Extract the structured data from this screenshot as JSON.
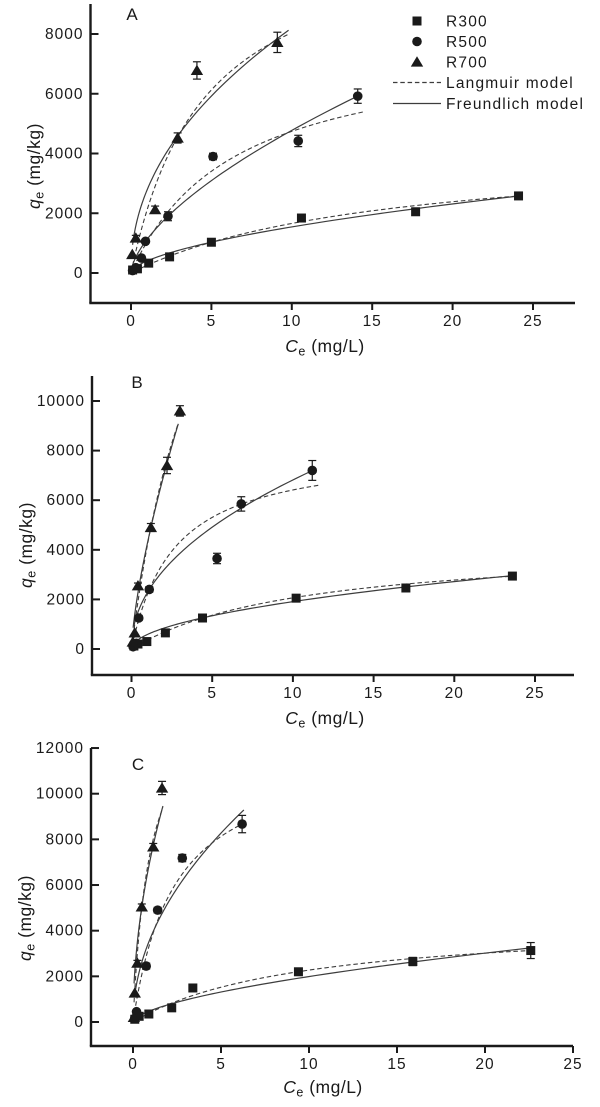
{
  "figure": {
    "background": "#ffffff",
    "ink": "#1a1a1a",
    "curve_color": "#3d3d3d",
    "legend": {
      "items": [
        {
          "label": "R300",
          "marker": "square"
        },
        {
          "label": "R500",
          "marker": "circle"
        },
        {
          "label": "R700",
          "marker": "triangle"
        },
        {
          "label": "Langmuir model",
          "line": "dashed"
        },
        {
          "label": "Freundlich model",
          "line": "solid"
        }
      ]
    }
  },
  "chart_data": [
    {
      "type": "scatter",
      "panel": "A",
      "xlabel": "Ce (mg/L)",
      "ylabel": "qe (mg/kg)",
      "xlim": [
        -2.5,
        27.6
      ],
      "ylim": [
        -1000,
        9000
      ],
      "xticks": [
        0,
        5,
        10,
        15,
        20,
        25
      ],
      "yticks": [
        0,
        2000,
        4000,
        6000,
        8000
      ],
      "series": [
        {
          "name": "R300",
          "marker": "square",
          "points": [
            [
              0.1,
              100,
              0
            ],
            [
              0.4,
              140,
              0
            ],
            [
              1.1,
              330,
              0
            ],
            [
              2.4,
              540,
              0
            ],
            [
              5.0,
              1030,
              60
            ],
            [
              10.6,
              1840,
              110
            ],
            [
              17.7,
              2050,
              90
            ],
            [
              24.1,
              2580,
              110
            ]
          ],
          "langmuir": {
            "qm": 4250,
            "b": 0.064,
            "range": [
              0.2,
              24.1
            ]
          },
          "freundlich": {
            "k": 403,
            "m": 0.583,
            "range": [
              0.2,
              24.1
            ]
          }
        },
        {
          "name": "R500",
          "marker": "circle",
          "points": [
            [
              0.1,
              80,
              0
            ],
            [
              0.3,
              180,
              0
            ],
            [
              0.65,
              500,
              0
            ],
            [
              0.9,
              1060,
              70
            ],
            [
              2.3,
              1900,
              150
            ],
            [
              5.1,
              3900,
              110
            ],
            [
              10.4,
              4420,
              190
            ],
            [
              14.1,
              5920,
              240
            ]
          ],
          "langmuir": {
            "qm": 7800,
            "b": 0.155,
            "range": [
              0.15,
              14.45
            ]
          },
          "freundlich": {
            "k": 1127,
            "m": 0.627,
            "range": [
              0.15,
              14.1
            ]
          }
        },
        {
          "name": "R700",
          "marker": "triangle",
          "points": [
            [
              0.08,
              620,
              0
            ],
            [
              0.3,
              1170,
              90
            ],
            [
              1.5,
              2120,
              120
            ],
            [
              2.9,
              4520,
              170
            ],
            [
              4.1,
              6780,
              290
            ],
            [
              9.1,
              7720,
              340
            ]
          ],
          "langmuir": {
            "qm": 11700,
            "b": 0.22,
            "range": [
              0.1,
              9.8
            ]
          },
          "freundlich": {
            "k": 2780,
            "m": 0.47,
            "range": [
              0.1,
              9.8
            ]
          }
        }
      ]
    },
    {
      "type": "scatter",
      "panel": "B",
      "xlabel": "Ce (mg/L)",
      "ylabel": "qe (mg/kg)",
      "xlim": [
        -2.5,
        27.4
      ],
      "ylim": [
        -1000,
        11000
      ],
      "xticks": [
        0,
        5,
        10,
        15,
        20,
        25
      ],
      "yticks": [
        0,
        2000,
        4000,
        6000,
        8000,
        10000
      ],
      "series": [
        {
          "name": "R300",
          "marker": "square",
          "points": [
            [
              0.15,
              120,
              0
            ],
            [
              0.4,
              200,
              0
            ],
            [
              0.95,
              300,
              0
            ],
            [
              2.1,
              650,
              0
            ],
            [
              4.4,
              1250,
              90
            ],
            [
              10.2,
              2050,
              90
            ],
            [
              17.0,
              2460,
              90
            ],
            [
              23.6,
              2940,
              110
            ]
          ],
          "langmuir": {
            "qm": 4260,
            "b": 0.094,
            "range": [
              0.2,
              23.6
            ]
          },
          "freundlich": {
            "k": 590,
            "m": 0.51,
            "range": [
              0.2,
              23.6
            ]
          }
        },
        {
          "name": "R500",
          "marker": "circle",
          "points": [
            [
              0.1,
              90,
              0
            ],
            [
              0.3,
              230,
              0
            ],
            [
              0.45,
              1250,
              90
            ],
            [
              1.1,
              2400,
              110
            ],
            [
              5.3,
              3650,
              210
            ],
            [
              6.8,
              5850,
              290
            ],
            [
              11.2,
              7200,
              400
            ]
          ],
          "langmuir": {
            "qm": 8100,
            "b": 0.38,
            "range": [
              0.15,
              11.65
            ]
          },
          "freundlich": {
            "k": 2294,
            "m": 0.473,
            "range": [
              0.15,
              11.2
            ]
          }
        },
        {
          "name": "R700",
          "marker": "triangle",
          "points": [
            [
              0.08,
              280,
              0
            ],
            [
              0.2,
              650,
              0
            ],
            [
              0.4,
              2550,
              110
            ],
            [
              1.2,
              4900,
              160
            ],
            [
              2.2,
              7400,
              330
            ],
            [
              3.0,
              9600,
              210
            ]
          ],
          "langmuir": {
            "qm": 23000,
            "b": 0.226,
            "range": [
              0.1,
              2.9
            ]
          },
          "freundlich": {
            "k": 4310,
            "m": 0.7,
            "range": [
              0.1,
              2.9
            ]
          }
        }
      ]
    },
    {
      "type": "scatter",
      "panel": "C",
      "xlabel": "Ce (mg/L)",
      "ylabel": "qe (mg/kg)",
      "xlim": [
        -2.4,
        25.0
      ],
      "ylim": [
        -1000,
        12000
      ],
      "xticks": [
        0,
        5,
        10,
        15,
        20,
        25
      ],
      "yticks": [
        0,
        2000,
        4000,
        6000,
        8000,
        10000,
        12000
      ],
      "series": [
        {
          "name": "R300",
          "marker": "square",
          "points": [
            [
              0.1,
              120,
              0
            ],
            [
              0.35,
              250,
              0
            ],
            [
              0.9,
              350,
              0
            ],
            [
              2.2,
              620,
              0
            ],
            [
              3.4,
              1490,
              100
            ],
            [
              9.4,
              2200,
              150
            ],
            [
              15.9,
              2650,
              180
            ],
            [
              22.6,
              3130,
              350
            ]
          ],
          "langmuir": {
            "qm": 4480,
            "b": 0.103,
            "range": [
              0.15,
              22.6
            ]
          },
          "freundlich": {
            "k": 500,
            "m": 0.6,
            "range": [
              0.15,
              22.6
            ]
          }
        },
        {
          "name": "R500",
          "marker": "circle",
          "points": [
            [
              0.1,
              160,
              0
            ],
            [
              0.2,
              450,
              0
            ],
            [
              0.75,
              2450,
              130
            ],
            [
              1.4,
              4900,
              120
            ],
            [
              2.8,
              7180,
              160
            ],
            [
              6.2,
              8670,
              380
            ]
          ],
          "langmuir": {
            "qm": 12000,
            "b": 0.42,
            "range": [
              0.15,
              6.35
            ]
          },
          "freundlich": {
            "k": 3700,
            "m": 0.5,
            "range": [
              0.15,
              6.3
            ]
          }
        },
        {
          "name": "R700",
          "marker": "triangle",
          "points": [
            [
              0.05,
              200,
              0
            ],
            [
              0.1,
              1270,
              0
            ],
            [
              0.25,
              2580,
              120
            ],
            [
              0.5,
              5040,
              130
            ],
            [
              1.15,
              7670,
              150
            ],
            [
              1.65,
              10250,
              290
            ]
          ],
          "langmuir": {
            "qm": 14700,
            "b": 1.04,
            "range": [
              0.06,
              1.7
            ]
          },
          "freundlich": {
            "k": 7200,
            "m": 0.515,
            "range": [
              0.06,
              1.7
            ]
          }
        }
      ]
    }
  ]
}
